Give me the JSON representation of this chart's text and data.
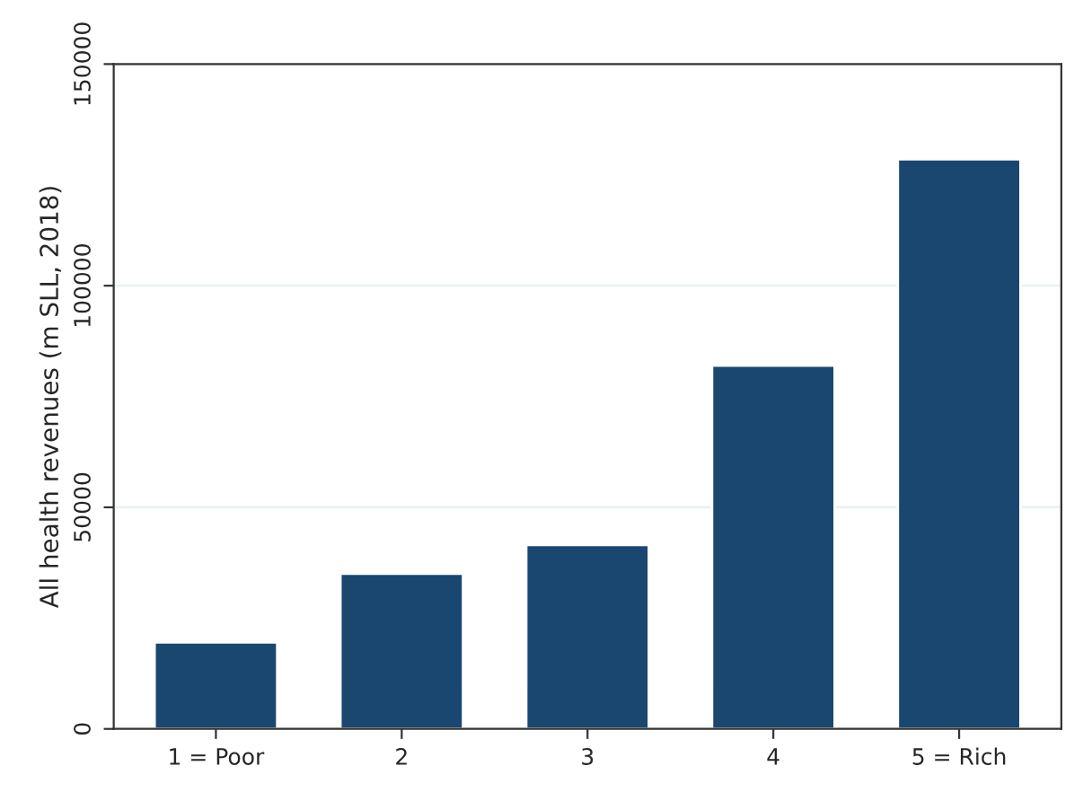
{
  "chart_data": {
    "type": "bar",
    "ylabel": "All health revenues (m SLL, 2018)",
    "categories": [
      "1 = Poor",
      "2",
      "3",
      "4",
      "5 = Rich"
    ],
    "values": [
      19500,
      35000,
      41500,
      82000,
      128500
    ],
    "color": "#1a476f",
    "ylim": [
      0,
      150000
    ],
    "yticks": [
      0,
      50000,
      100000,
      150000
    ],
    "grid": "y"
  }
}
